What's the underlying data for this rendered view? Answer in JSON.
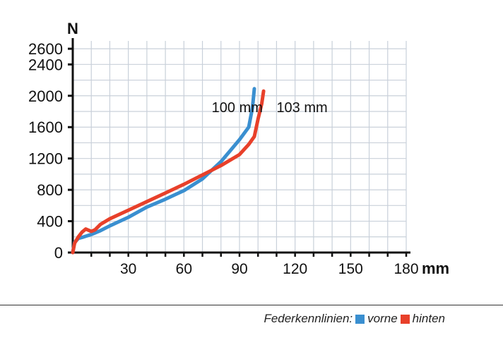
{
  "chart_data": {
    "type": "line",
    "y_unit": "N",
    "x_unit": "mm",
    "xlim": [
      0,
      180
    ],
    "ylim": [
      0,
      2700
    ],
    "x_ticks": [
      30,
      60,
      90,
      120,
      150,
      180
    ],
    "y_ticks": [
      0,
      400,
      800,
      1200,
      1600,
      2000,
      2400,
      2600
    ],
    "grid": true,
    "series": [
      {
        "name": "vorne",
        "color": "#3a8fd0",
        "x": [
          0,
          1,
          3,
          6,
          10,
          15,
          20,
          30,
          40,
          50,
          60,
          70,
          75,
          80,
          85,
          90,
          95,
          97,
          98
        ],
        "y": [
          0,
          130,
          180,
          200,
          230,
          280,
          340,
          450,
          580,
          680,
          790,
          940,
          1050,
          1160,
          1300,
          1440,
          1600,
          1850,
          2090
        ]
      },
      {
        "name": "hinten",
        "color": "#e8402a",
        "x": [
          0,
          1,
          3,
          5,
          7,
          8,
          10,
          12,
          15,
          20,
          30,
          40,
          50,
          60,
          70,
          80,
          90,
          95,
          98,
          100,
          102,
          103
        ],
        "y": [
          0,
          120,
          200,
          260,
          300,
          290,
          270,
          290,
          360,
          430,
          540,
          650,
          760,
          870,
          990,
          1110,
          1250,
          1380,
          1480,
          1700,
          1900,
          2060
        ]
      }
    ],
    "annotations": [
      {
        "text": "100  mm",
        "x": 75,
        "y": 1790
      },
      {
        "text": "103  mm",
        "x": 110,
        "y": 1790
      }
    ]
  },
  "legend": {
    "title": "Federkennlinien:",
    "items": [
      {
        "label": "vorne",
        "color": "#3a8fd0"
      },
      {
        "label": "hinten",
        "color": "#e8402a"
      }
    ]
  }
}
